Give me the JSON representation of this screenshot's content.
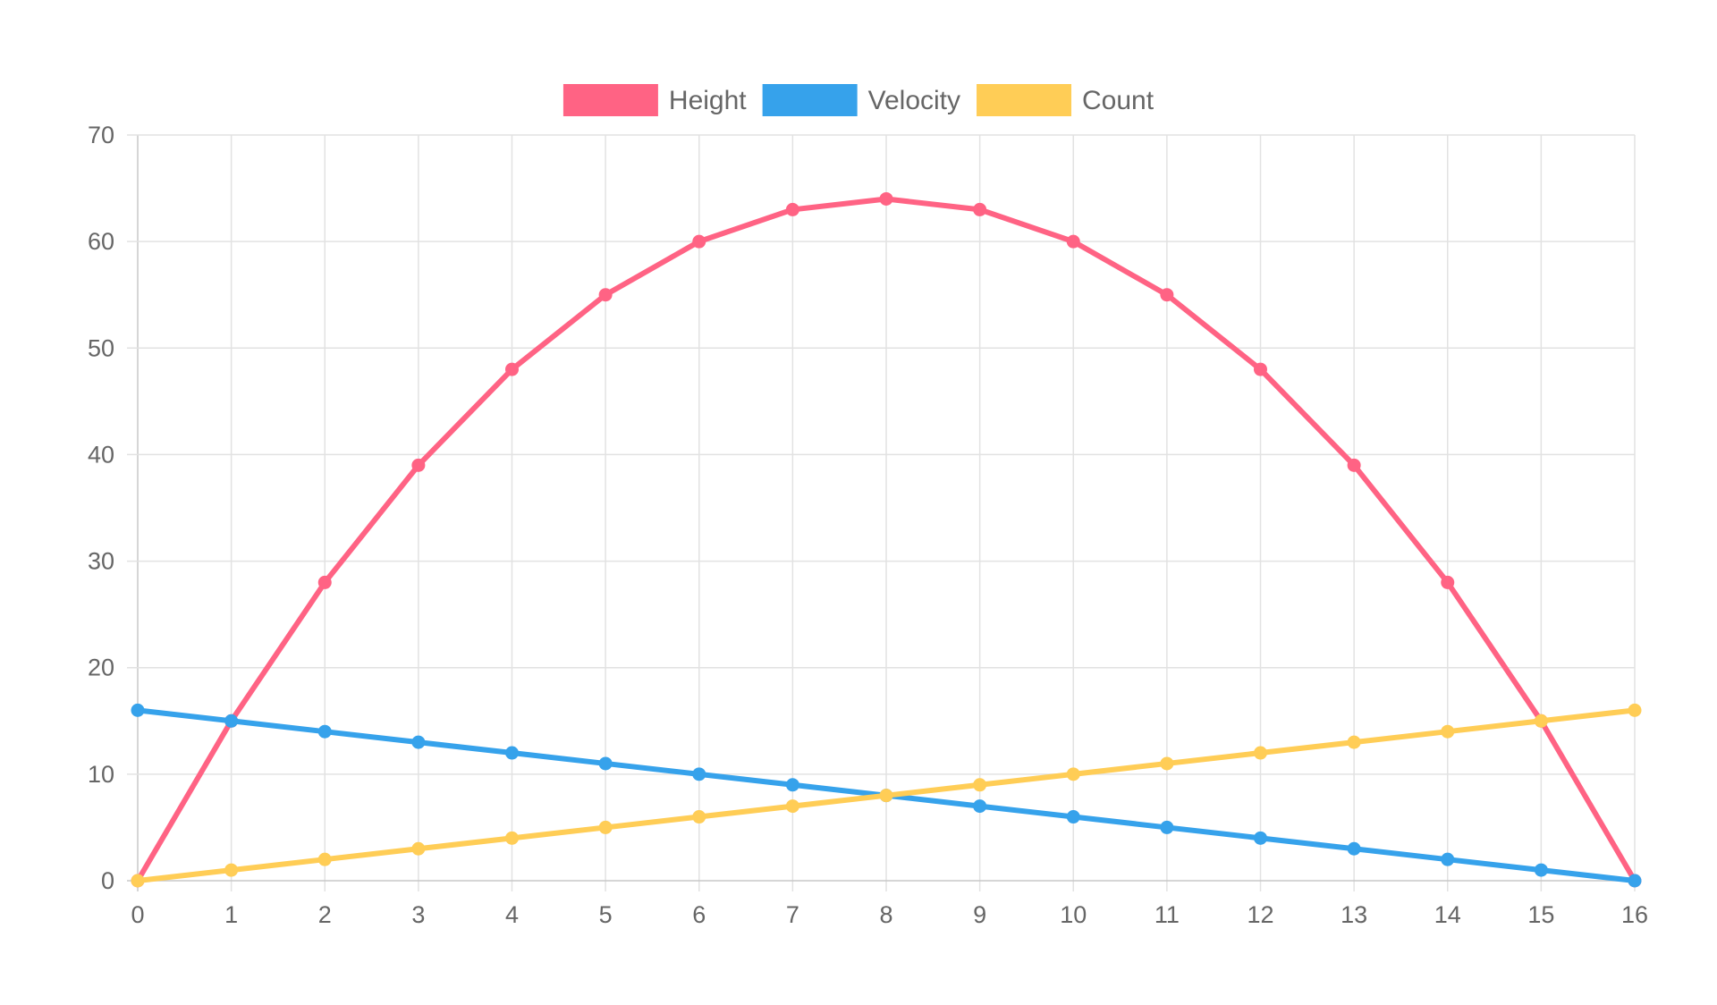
{
  "chart_data": {
    "type": "line",
    "title": "",
    "xlabel": "",
    "ylabel": "",
    "x": [
      0,
      1,
      2,
      3,
      4,
      5,
      6,
      7,
      8,
      9,
      10,
      11,
      12,
      13,
      14,
      15,
      16
    ],
    "x_tick_labels": [
      "0",
      "1",
      "2",
      "3",
      "4",
      "5",
      "6",
      "7",
      "8",
      "9",
      "10",
      "11",
      "12",
      "13",
      "14",
      "15",
      "16"
    ],
    "xlim": [
      0,
      16
    ],
    "ylim": [
      0,
      70
    ],
    "y_ticks": [
      0,
      10,
      20,
      30,
      40,
      50,
      60,
      70
    ],
    "y_tick_labels": [
      "0",
      "10",
      "20",
      "30",
      "40",
      "50",
      "60",
      "70"
    ],
    "grid": true,
    "legend_position": "top-center",
    "series": [
      {
        "name": "Height",
        "color": "#ff6384",
        "values": [
          0,
          15,
          28,
          39,
          48,
          55,
          60,
          63,
          64,
          63,
          60,
          55,
          48,
          39,
          28,
          15,
          0
        ]
      },
      {
        "name": "Velocity",
        "color": "#36a2eb",
        "values": [
          16,
          15,
          14,
          13,
          12,
          11,
          10,
          9,
          8,
          7,
          6,
          5,
          4,
          3,
          2,
          1,
          0
        ]
      },
      {
        "name": "Count",
        "color": "#ffcd56",
        "values": [
          0,
          1,
          2,
          3,
          4,
          5,
          6,
          7,
          8,
          9,
          10,
          11,
          12,
          13,
          14,
          15,
          16
        ]
      }
    ]
  }
}
